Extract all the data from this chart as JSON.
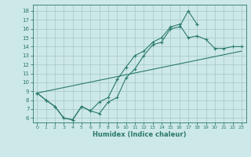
{
  "xlabel": "Humidex (Indice chaleur)",
  "background_color": "#cde8e8",
  "grid_color": "#aacccc",
  "line_color": "#2a7a6a",
  "x_ticks": [
    0,
    1,
    2,
    3,
    4,
    5,
    6,
    7,
    8,
    9,
    10,
    11,
    12,
    13,
    14,
    15,
    16,
    17,
    18,
    19,
    20,
    21,
    22,
    23
  ],
  "y_ticks": [
    6,
    7,
    8,
    9,
    10,
    11,
    12,
    13,
    14,
    15,
    16,
    17,
    18
  ],
  "ylim": [
    5.5,
    18.7
  ],
  "xlim": [
    -0.5,
    23.5
  ],
  "line1_x": [
    0,
    1,
    2,
    3,
    4,
    5,
    6,
    7,
    8,
    9,
    10,
    11,
    12,
    13,
    14,
    15,
    16,
    17,
    18
  ],
  "line1_y": [
    8.8,
    8.0,
    7.3,
    6.0,
    5.8,
    7.3,
    6.8,
    6.5,
    7.8,
    8.3,
    10.5,
    11.5,
    13.0,
    14.2,
    14.5,
    16.0,
    16.2,
    18.0,
    16.5
  ],
  "line2_x": [
    0,
    1,
    2,
    3,
    4,
    5,
    6,
    7,
    8,
    9,
    10,
    11,
    12,
    13,
    14,
    15,
    16,
    17,
    18,
    19,
    20,
    21,
    22,
    23
  ],
  "line2_y": [
    8.8,
    8.0,
    7.3,
    6.0,
    5.8,
    7.3,
    6.8,
    7.8,
    8.3,
    10.3,
    11.7,
    13.0,
    13.5,
    14.5,
    15.0,
    16.2,
    16.5,
    15.0,
    15.2,
    14.8,
    13.8,
    13.8,
    14.0,
    14.0
  ],
  "line3_x": [
    0,
    23
  ],
  "line3_y": [
    8.8,
    13.5
  ]
}
